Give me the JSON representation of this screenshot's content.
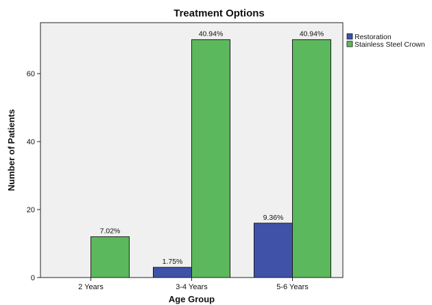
{
  "chart_data": {
    "type": "bar",
    "title": "Treatment Options",
    "xlabel": "Age Group",
    "ylabel": "Number of Patients",
    "categories": [
      "2 Years",
      "3-4 Years",
      "5-6 Years"
    ],
    "ylim": [
      0,
      75
    ],
    "yticks": [
      0,
      20,
      40,
      60
    ],
    "grid": false,
    "legend_position": "right",
    "series": [
      {
        "name": "Restoration",
        "color": "#3f52a8",
        "values": [
          0,
          3,
          16
        ],
        "labels": [
          "",
          "1.75%",
          "9.36%"
        ]
      },
      {
        "name": "Stainless Steel Crown",
        "color": "#5cb85c",
        "values": [
          12,
          70,
          70
        ],
        "labels": [
          "7.02%",
          "40.94%",
          "40.94%"
        ]
      }
    ]
  }
}
